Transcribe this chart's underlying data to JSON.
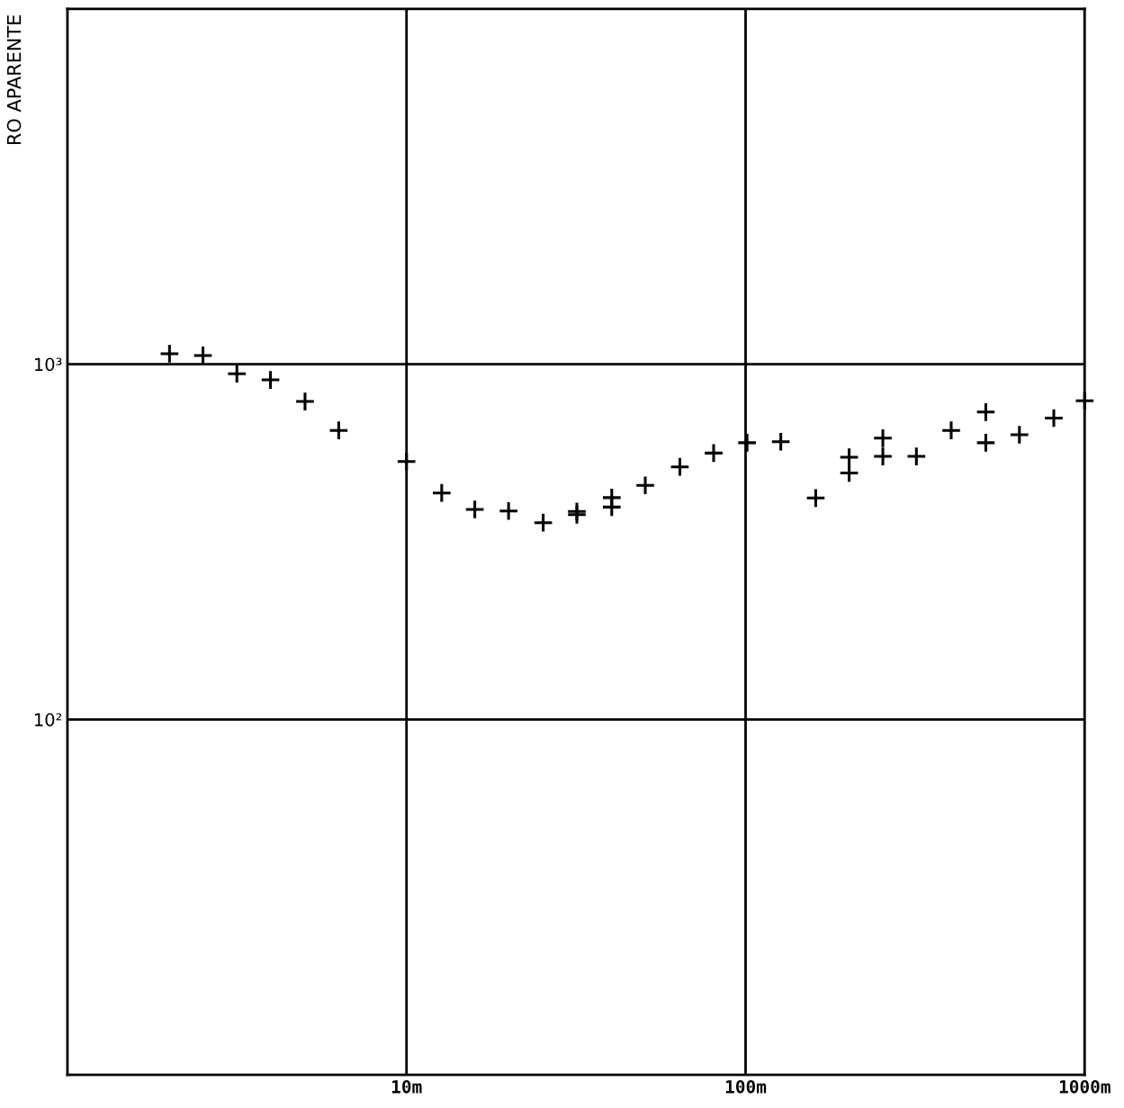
{
  "chart_data": {
    "type": "scatter",
    "ylabel": "RO APARENTE",
    "log": "xy",
    "grid": true,
    "marker": "cross",
    "color": "#000000",
    "xlim": [
      1,
      1000
    ],
    "ylim": [
      10,
      10000
    ],
    "xticks": [
      {
        "value": 10,
        "label": "10m"
      },
      {
        "value": 100,
        "label": "100m"
      },
      {
        "value": 1000,
        "label": "1000m"
      }
    ],
    "yticks": [
      {
        "value": 100,
        "label": "10²"
      },
      {
        "value": 1000,
        "label": "10³"
      }
    ],
    "x": [
      2.0,
      2.51,
      3.16,
      3.97,
      5.02,
      6.31,
      10,
      12.7,
      15.9,
      20.0,
      25.3,
      31.8,
      31.8,
      40.3,
      40.3,
      50.6,
      64.0,
      80.5,
      101,
      127,
      161,
      202,
      202,
      254,
      254,
      319,
      404,
      511,
      511,
      642,
      811,
      1000
    ],
    "values": [
      1070,
      1058,
      940,
      903,
      785,
      651,
      532,
      434,
      390,
      386,
      358,
      377,
      385,
      421,
      396,
      456,
      514,
      562,
      601,
      605,
      420,
      547,
      494,
      619,
      550,
      550,
      651,
      733,
      601,
      633,
      705,
      789
    ]
  }
}
